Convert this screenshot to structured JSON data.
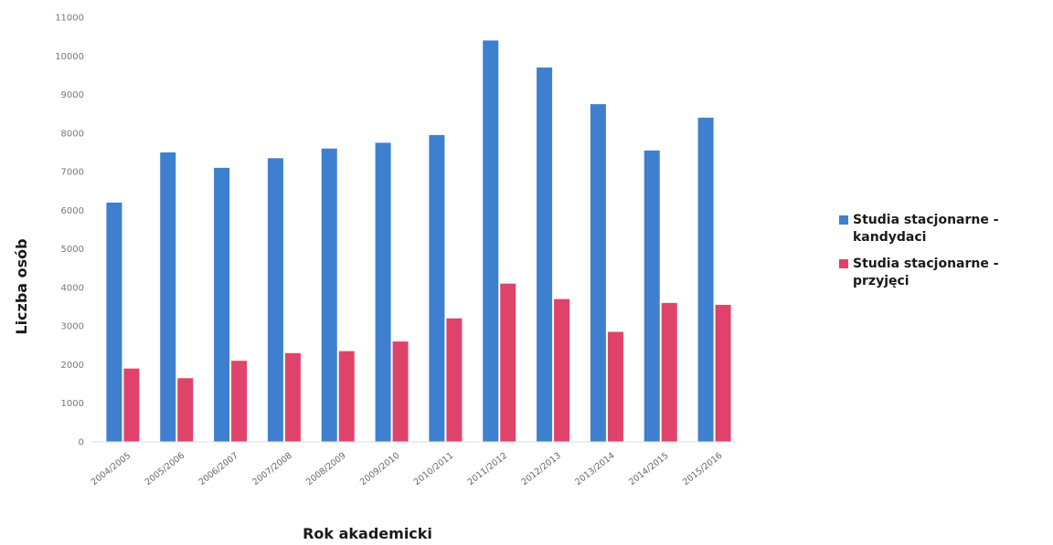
{
  "chart_data": {
    "type": "bar",
    "xlabel": "Rok akademicki",
    "ylabel": "Liczba osób",
    "ylim": [
      0,
      11000
    ],
    "yticks": [
      0,
      1000,
      2000,
      3000,
      4000,
      5000,
      6000,
      7000,
      8000,
      9000,
      10000,
      11000
    ],
    "grid": false,
    "legend_position": "right",
    "categories": [
      "2004/2005",
      "2005/2006",
      "2006/2007",
      "2007/2008",
      "2008/2009",
      "2009/2010",
      "2010/2011",
      "2011/2012",
      "2012/2013",
      "2013/2014",
      "2014/2015",
      "2015/2016"
    ],
    "series": [
      {
        "name": "Studia stacjonarne - kandydaci",
        "color": "#3f7fcf",
        "values": [
          6200,
          7500,
          7100,
          7350,
          7600,
          7750,
          7950,
          10400,
          9700,
          8750,
          7550,
          8400
        ]
      },
      {
        "name": "Studia stacjonarne - przyjęci",
        "color": "#e0436a",
        "values": [
          1900,
          1650,
          2100,
          2300,
          2350,
          2600,
          3200,
          4100,
          3700,
          2850,
          3600,
          3550
        ]
      }
    ]
  }
}
